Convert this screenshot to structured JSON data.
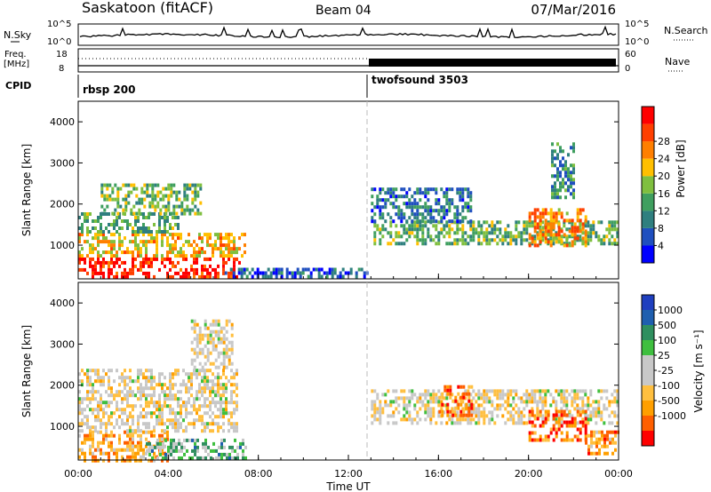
{
  "header": {
    "station": "Saskatoon (fitACF)",
    "beam": "Beam 04",
    "date": "07/Mar/2016"
  },
  "nsky_panel": {
    "left_label": "N.Sky",
    "left_ticks": [
      "10^5",
      "10^0"
    ],
    "right_label": "N.Search",
    "right_ticks": [
      "10^5",
      "10^0"
    ]
  },
  "freq_panel": {
    "left_label_1": "Freq.",
    "left_label_2": "[MHz]",
    "left_ticks": [
      "18",
      "8"
    ],
    "right_label": "Nave",
    "right_ticks": [
      "60",
      "0"
    ]
  },
  "cpid": {
    "label": "CPID",
    "segments": [
      {
        "name": "rbsp 200",
        "start_hour": 0
      },
      {
        "name": "twofsound 3503",
        "start_hour": 13
      }
    ]
  },
  "colors": {
    "power_scale": [
      "#0000ff",
      "#1f4fbf",
      "#2f7f7f",
      "#3f9f5f",
      "#7fbf3f",
      "#ffbf00",
      "#ff7f00",
      "#ff3f00",
      "#ff0000"
    ],
    "velocity_scale": [
      "#ff0000",
      "#ff5f00",
      "#ff9f00",
      "#ffbf3f",
      "#c8c8c8",
      "#c8c8c8",
      "#3fbf3f",
      "#2f8f5f",
      "#1f5faf",
      "#1f3fbf"
    ]
  },
  "chart_data": [
    {
      "type": "heatmap",
      "name": "power",
      "ylabel": "Slant Range [km]",
      "yticks": [
        "1000",
        "2000",
        "3000",
        "4000"
      ],
      "ylim": [
        180,
        4500
      ],
      "xlim": [
        0,
        24
      ],
      "colorbar_label": "Power [dB]",
      "colorbar_ticks": [
        "4",
        "8",
        "12",
        "16",
        "20",
        "24",
        "28"
      ],
      "regions": [
        {
          "t0": 0.0,
          "t1": 7.2,
          "r0": 200,
          "r1": 700,
          "level": 0.92
        },
        {
          "t0": 0.0,
          "t1": 7.4,
          "r0": 700,
          "r1": 1300,
          "level": 0.62
        },
        {
          "t0": 0.0,
          "t1": 4.5,
          "r0": 1300,
          "r1": 1800,
          "level": 0.4
        },
        {
          "t0": 1.0,
          "t1": 5.5,
          "r0": 1800,
          "r1": 2500,
          "level": 0.45
        },
        {
          "t0": 6.5,
          "t1": 12.8,
          "r0": 200,
          "r1": 450,
          "level": 0.2
        },
        {
          "t0": 13.0,
          "t1": 24.0,
          "r0": 1000,
          "r1": 1600,
          "level": 0.42
        },
        {
          "t0": 13.0,
          "t1": 17.5,
          "r0": 1600,
          "r1": 2400,
          "level": 0.25
        },
        {
          "t0": 20.0,
          "t1": 22.5,
          "r0": 1000,
          "r1": 1900,
          "level": 0.7
        },
        {
          "t0": 21.0,
          "t1": 22.0,
          "r0": 2200,
          "r1": 3500,
          "level": 0.3
        }
      ]
    },
    {
      "type": "heatmap",
      "name": "velocity",
      "ylabel": "Slant Range [km]",
      "yticks": [
        "1000",
        "2000",
        "3000",
        "4000"
      ],
      "ylim": [
        180,
        4500
      ],
      "xlim": [
        0,
        24
      ],
      "xlabel": "Time UT",
      "xticks": [
        "00:00",
        "04:00",
        "08:00",
        "12:00",
        "16:00",
        "20:00",
        "00:00"
      ],
      "colorbar_label": "Velocity [m s⁻¹]",
      "colorbar_ticks": [
        "1000",
        "500",
        "100",
        "25",
        "-25",
        "-100",
        "-500",
        "-1000"
      ],
      "regions": [
        {
          "t0": 0.0,
          "t1": 4.0,
          "r0": 200,
          "r1": 900,
          "level": 0.3
        },
        {
          "t0": 3.0,
          "t1": 7.5,
          "r0": 200,
          "r1": 700,
          "level": 0.65
        },
        {
          "t0": 0.0,
          "t1": 7.0,
          "r0": 900,
          "r1": 2400,
          "level": 0.45
        },
        {
          "t0": 5.0,
          "t1": 6.8,
          "r0": 2400,
          "r1": 3600,
          "level": 0.45
        },
        {
          "t0": 13.0,
          "t1": 24.0,
          "r0": 1100,
          "r1": 1900,
          "level": 0.45
        },
        {
          "t0": 16.0,
          "t1": 17.5,
          "r0": 1300,
          "r1": 2000,
          "level": 0.2
        },
        {
          "t0": 20.0,
          "t1": 22.5,
          "r0": 700,
          "r1": 1400,
          "level": 0.2
        },
        {
          "t0": 22.5,
          "t1": 24.0,
          "r0": 300,
          "r1": 900,
          "level": 0.25
        }
      ]
    }
  ]
}
